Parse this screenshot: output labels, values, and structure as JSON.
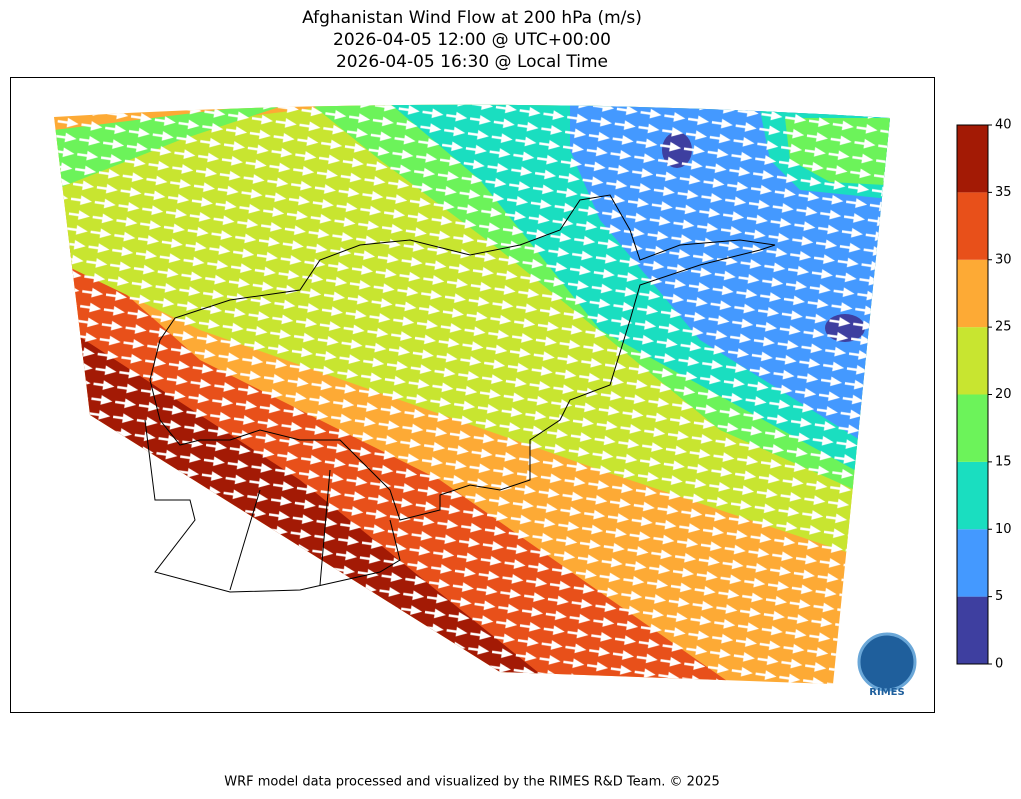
{
  "title": [
    "Afghanistan Wind Flow at 200 hPa (m/s)",
    "2026-04-05 12:00 @ UTC+00:00",
    "2026-04-05 16:30 @ Local Time"
  ],
  "colorbar": {
    "ticks": [
      0,
      5,
      10,
      15,
      20,
      25,
      30,
      35,
      40
    ],
    "colors": [
      "#3e3fa0",
      "#4499ff",
      "#1adec0",
      "#6cf35a",
      "#c8e530",
      "#fdaa35",
      "#e8501a",
      "#a31a05"
    ]
  },
  "logo": "RIMES",
  "footer": "WRF model data processed and visualized by the RIMES R&D Team. © 2025"
}
